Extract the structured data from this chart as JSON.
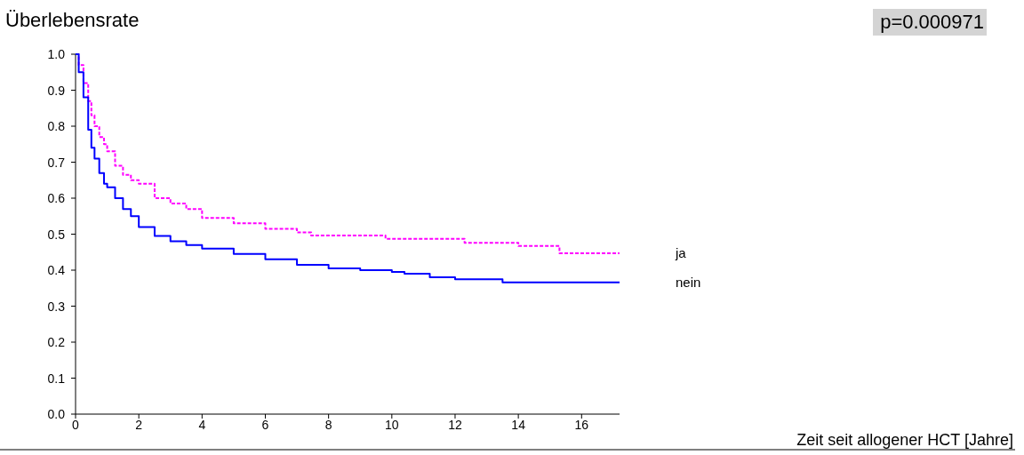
{
  "chart_data": {
    "type": "step",
    "ylabel": "Überlebensrate",
    "annotations": [
      "p=0.000971",
      "Zeit seit allogener HCT [Jahre]"
    ],
    "xlim": [
      0,
      17.2
    ],
    "ylim": [
      0,
      1
    ],
    "xticks": [
      0,
      2,
      4,
      6,
      8,
      10,
      12,
      14,
      16
    ],
    "yticks": [
      {
        "value": 0,
        "label": "0.0"
      },
      0.1,
      0.2,
      0.3,
      0.4,
      0.5,
      0.6,
      0.7,
      0.8,
      0.9,
      {
        "value": 1,
        "label": "1.0"
      }
    ],
    "grid": false,
    "legend": "right",
    "series": [
      {
        "name": "ja",
        "color": "#ff00ff",
        "line_style": "dashed",
        "x": [
          0,
          0.1,
          0.25,
          0.4,
          0.5,
          0.6,
          0.75,
          0.9,
          1.0,
          1.25,
          1.5,
          1.75,
          2,
          2.5,
          3,
          3.5,
          4,
          5,
          6,
          7,
          7.45,
          9.8,
          12.3,
          14.0,
          15.3,
          17.2
        ],
        "values": [
          1.0,
          0.97,
          0.92,
          0.87,
          0.83,
          0.8,
          0.77,
          0.75,
          0.73,
          0.69,
          0.665,
          0.65,
          0.64,
          0.6,
          0.585,
          0.57,
          0.545,
          0.53,
          0.515,
          0.505,
          0.496,
          0.487,
          0.476,
          0.467,
          0.447,
          0.447
        ]
      },
      {
        "name": "nein",
        "color": "#0000ff",
        "line_style": "solid",
        "x": [
          0,
          0.1,
          0.25,
          0.4,
          0.5,
          0.6,
          0.75,
          0.9,
          1.0,
          1.25,
          1.5,
          1.75,
          2,
          2.5,
          3,
          3.5,
          4,
          5,
          6,
          7,
          8,
          9,
          10,
          10.4,
          11.2,
          12,
          13.5,
          17.2
        ],
        "values": [
          1.0,
          0.95,
          0.88,
          0.79,
          0.74,
          0.71,
          0.67,
          0.64,
          0.63,
          0.6,
          0.57,
          0.55,
          0.52,
          0.495,
          0.48,
          0.47,
          0.46,
          0.445,
          0.43,
          0.415,
          0.405,
          0.4,
          0.395,
          0.39,
          0.38,
          0.375,
          0.366,
          0.366
        ]
      }
    ]
  }
}
